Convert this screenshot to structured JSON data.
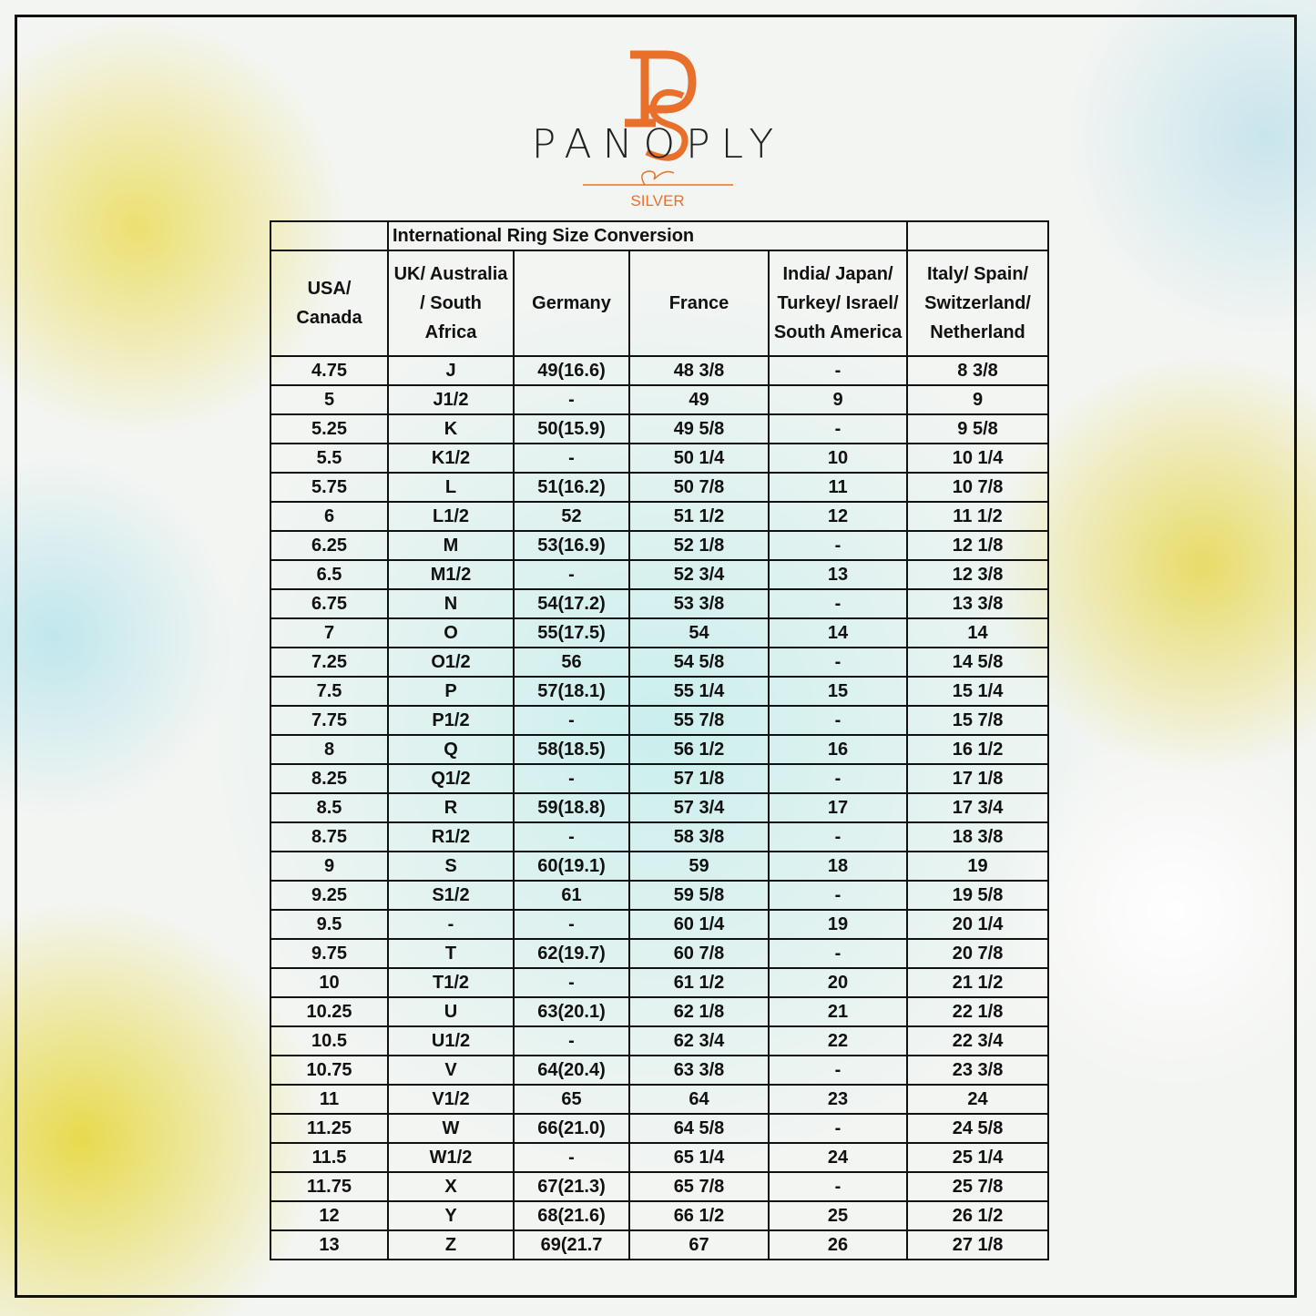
{
  "brand": {
    "name": "PANOPLY",
    "tagline": "SILVER"
  },
  "table": {
    "title": "International Ring Size Conversion",
    "headers": [
      "USA/ Canada",
      "UK/ Australia / South Africa",
      "Germany",
      "France",
      "India/ Japan/ Turkey/ Israel/ South America",
      "Italy/ Spain/ Switzerland/ Netherland"
    ],
    "rows": [
      [
        "4.75",
        "J",
        "49(16.6)",
        "48 3/8",
        "-",
        "8 3/8"
      ],
      [
        "5",
        "J1/2",
        "-",
        "49",
        "9",
        "9"
      ],
      [
        "5.25",
        "K",
        "50(15.9)",
        "49 5/8",
        "-",
        "9 5/8"
      ],
      [
        "5.5",
        "K1/2",
        "-",
        "50 1/4",
        "10",
        "10 1/4"
      ],
      [
        "5.75",
        "L",
        "51(16.2)",
        "50 7/8",
        "11",
        "10 7/8"
      ],
      [
        "6",
        "L1/2",
        "52",
        "51 1/2",
        "12",
        "11 1/2"
      ],
      [
        "6.25",
        "M",
        "53(16.9)",
        "52 1/8",
        "-",
        "12 1/8"
      ],
      [
        "6.5",
        "M1/2",
        "-",
        "52 3/4",
        "13",
        "12 3/8"
      ],
      [
        "6.75",
        "N",
        "54(17.2)",
        "53 3/8",
        "-",
        "13 3/8"
      ],
      [
        "7",
        "O",
        "55(17.5)",
        "54",
        "14",
        "14"
      ],
      [
        "7.25",
        "O1/2",
        "56",
        "54 5/8",
        "-",
        "14 5/8"
      ],
      [
        "7.5",
        "P",
        "57(18.1)",
        "55 1/4",
        "15",
        "15 1/4"
      ],
      [
        "7.75",
        "P1/2",
        "-",
        "55 7/8",
        "-",
        "15 7/8"
      ],
      [
        "8",
        "Q",
        "58(18.5)",
        "56 1/2",
        "16",
        "16 1/2"
      ],
      [
        "8.25",
        "Q1/2",
        "-",
        "57 1/8",
        "-",
        "17 1/8"
      ],
      [
        "8.5",
        "R",
        "59(18.8)",
        "57 3/4",
        "17",
        "17 3/4"
      ],
      [
        "8.75",
        "R1/2",
        "-",
        "58 3/8",
        "-",
        "18 3/8"
      ],
      [
        "9",
        "S",
        "60(19.1)",
        "59",
        "18",
        "19"
      ],
      [
        "9.25",
        "S1/2",
        "61",
        "59 5/8",
        "-",
        "19 5/8"
      ],
      [
        "9.5",
        "-",
        "-",
        "60 1/4",
        "19",
        "20 1/4"
      ],
      [
        "9.75",
        "T",
        "62(19.7)",
        "60 7/8",
        "-",
        "20 7/8"
      ],
      [
        "10",
        "T1/2",
        "-",
        "61 1/2",
        "20",
        "21 1/2"
      ],
      [
        "10.25",
        "U",
        "63(20.1)",
        "62 1/8",
        "21",
        "22 1/8"
      ],
      [
        "10.5",
        "U1/2",
        "-",
        "62 3/4",
        "22",
        "22 3/4"
      ],
      [
        "10.75",
        "V",
        "64(20.4)",
        "63 3/8",
        "-",
        "23 3/8"
      ],
      [
        "11",
        "V1/2",
        "65",
        "64",
        "23",
        "24"
      ],
      [
        "11.25",
        "W",
        "66(21.0)",
        "64 5/8",
        "-",
        "24 5/8"
      ],
      [
        "11.5",
        "W1/2",
        "-",
        "65 1/4",
        "24",
        "25 1/4"
      ],
      [
        "11.75",
        "X",
        "67(21.3)",
        "65 7/8",
        "-",
        "25 7/8"
      ],
      [
        "12",
        "Y",
        "68(21.6)",
        "66 1/2",
        "25",
        "26 1/2"
      ],
      [
        "13",
        "Z",
        "69(21.7",
        "67",
        "26",
        "27 1/8"
      ]
    ]
  }
}
